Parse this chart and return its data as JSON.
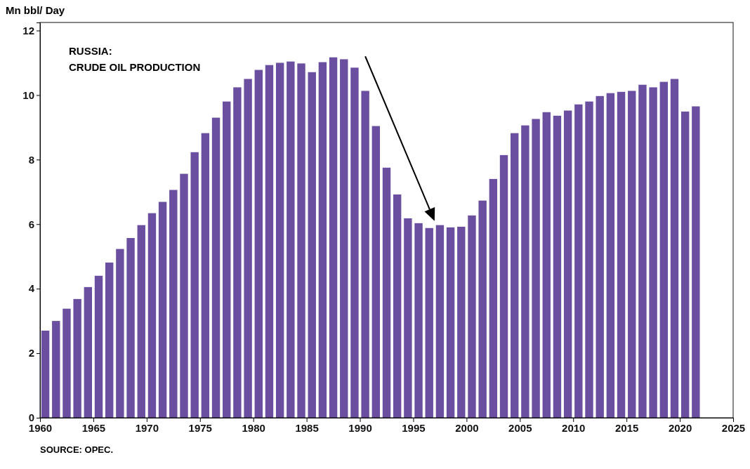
{
  "chart_data": {
    "type": "bar",
    "ylabel": "Mn bbl/ Day",
    "annotations": [
      "RUSSIA:",
      "CRUDE OIL PRODUCTION",
      "SOURCE: OPEC."
    ],
    "x": [
      1960.5,
      1961.5,
      1962.5,
      1963.5,
      1964.5,
      1965.5,
      1966.5,
      1967.5,
      1968.5,
      1969.5,
      1970.5,
      1971.5,
      1972.5,
      1973.5,
      1974.5,
      1975.5,
      1976.5,
      1977.5,
      1978.5,
      1979.5,
      1980.5,
      1981.5,
      1982.5,
      1983.5,
      1984.5,
      1985.5,
      1986.5,
      1987.5,
      1988.5,
      1989.5,
      1990.5,
      1991.5,
      1992.5,
      1993.5,
      1994.5,
      1995.5,
      1996.5,
      1997.5,
      1998.5,
      1999.5,
      2000.5,
      2001.5,
      2002.5,
      2003.5,
      2004.5,
      2005.5,
      2006.5,
      2007.5,
      2008.5,
      2009.5,
      2010.5,
      2011.5,
      2012.5,
      2013.5,
      2014.5,
      2015.5,
      2016.5,
      2017.5,
      2018.5,
      2019.5,
      2020.5,
      2021.5
    ],
    "series": [
      {
        "color": "#6a4fa0",
        "values": [
          2.7,
          3.0,
          3.38,
          3.68,
          4.05,
          4.4,
          4.81,
          5.23,
          5.57,
          5.97,
          6.34,
          6.69,
          7.06,
          7.56,
          8.23,
          8.82,
          9.3,
          9.8,
          10.24,
          10.5,
          10.78,
          10.93,
          11.0,
          11.04,
          10.98,
          10.71,
          11.02,
          11.17,
          11.11,
          10.85,
          10.13,
          9.04,
          7.75,
          6.92,
          6.18,
          6.03,
          5.88,
          5.97,
          5.9,
          5.92,
          6.27,
          6.73,
          7.4,
          8.14,
          8.82,
          9.06,
          9.26,
          9.47,
          9.36,
          9.52,
          9.71,
          9.8,
          9.97,
          10.06,
          10.1,
          10.13,
          10.32,
          10.24,
          10.41,
          10.5,
          9.49,
          9.65
        ]
      }
    ],
    "xlim": [
      1960,
      2025
    ],
    "xticks": [
      1960,
      1965,
      1970,
      1975,
      1980,
      1985,
      1990,
      1995,
      2000,
      2005,
      2010,
      2015,
      2020,
      2025
    ],
    "ylim": [
      0,
      12.25
    ],
    "yticks": [
      0,
      2,
      4,
      6,
      8,
      10,
      12
    ],
    "grid": false
  }
}
